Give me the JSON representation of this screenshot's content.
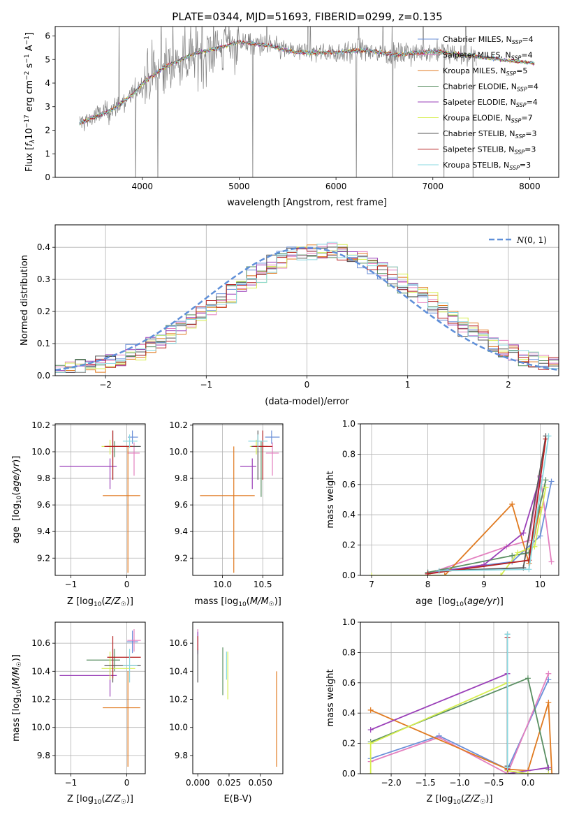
{
  "figure_title": "PLATE=0344, MJD=51693, FIBERID=0299, z=0.135",
  "colors": {
    "Chabrier MILES": "#6a8fd8",
    "Salpeter MILES": "#e37fbf",
    "Kroupa MILES": "#e07a20",
    "Chabrier ELODIE": "#5a8f62",
    "Salpeter ELODIE": "#9a3fb8",
    "Kroupa ELODIE": "#d6ee50",
    "Chabrier STELIB": "#555555",
    "Salpeter STELIB": "#b51f1f",
    "Kroupa STELIB": "#8ad8e0",
    "data": "#808080",
    "normal": "#5f8fd8",
    "grid": "#b0b0b0"
  },
  "chart_data": [
    {
      "panel": "spectrum",
      "type": "line",
      "xlabel": "wavelength [Angstrom, rest frame]",
      "ylabel": "Flux [fλ10⁻¹⁷ erg cm⁻² s⁻¹ A⁻¹]",
      "xlim": [
        3100,
        8300
      ],
      "ylim": [
        0,
        6.4
      ],
      "xticks": [
        4000,
        5000,
        6000,
        7000,
        8000
      ],
      "yticks": [
        0,
        1,
        2,
        3,
        4,
        5,
        6
      ],
      "grid": false,
      "legend": "top-right",
      "legend_entries": [
        "Chabrier MILES, N_SSP=4",
        "Salpeter MILES, N_SSP=4",
        "Kroupa MILES, N_SSP=5",
        "Chabrier ELODIE, N_SSP=4",
        "Salpeter ELODIE, N_SSP=4",
        "Kroupa ELODIE, N_SSP=7",
        "Chabrier STELIB, N_SSP=3",
        "Salpeter STELIB, N_SSP=3",
        "Kroupa STELIB, N_SSP=3"
      ],
      "continuum": {
        "x": [
          3350,
          3500,
          3700,
          3900,
          4000,
          4200,
          4500,
          4800,
          5000,
          5300,
          5600,
          6000,
          6300,
          6600,
          7000,
          7400,
          7800,
          8050
        ],
        "y": [
          2.3,
          2.55,
          2.9,
          3.5,
          4.0,
          4.6,
          5.2,
          5.5,
          5.75,
          5.6,
          5.3,
          5.3,
          5.4,
          5.2,
          5.35,
          5.15,
          4.95,
          4.85
        ]
      },
      "model_x_range": [
        3350,
        8050
      ],
      "data_x_range": [
        3350,
        7450
      ]
    },
    {
      "panel": "residuals",
      "type": "bar",
      "xlabel": "(data-model)/error",
      "ylabel": "Normed distribution",
      "xlim": [
        -2.5,
        2.5
      ],
      "ylim": [
        0,
        0.47
      ],
      "xticks": [
        -2,
        -1,
        0,
        1,
        2
      ],
      "yticks": [
        0.0,
        0.1,
        0.2,
        0.3,
        0.4
      ],
      "grid": true,
      "legend": "top-right",
      "legend_entries": [
        "N(0,1)"
      ],
      "bin_width": 0.1,
      "x_start": -2.5
    },
    {
      "panel": "age_vs_Z",
      "type": "scatter",
      "xlabel": "Z [log10(Z/Z☉)]",
      "ylabel": "age  [log10(age/yr)]",
      "xlim": [
        -1.28,
        0.33
      ],
      "ylim": [
        9.07,
        10.21
      ],
      "xticks": [
        -1,
        0
      ],
      "yticks": [
        9.2,
        9.4,
        9.6,
        9.8,
        10.0,
        10.2
      ],
      "grid": true,
      "points": [
        {
          "model": "Chabrier MILES",
          "x": 0.1,
          "y": 10.11,
          "xerr": [
            0.08,
            0.1
          ],
          "yerr": [
            0.05,
            0.05
          ]
        },
        {
          "model": "Salpeter MILES",
          "x": 0.13,
          "y": 9.99,
          "xerr": [
            0.12,
            0.1
          ],
          "yerr": [
            0.17,
            0.08
          ]
        },
        {
          "model": "Kroupa MILES",
          "x": 0.02,
          "y": 9.67,
          "xerr": [
            0.45,
            0.22
          ],
          "yerr": [
            0.58,
            0.37
          ]
        },
        {
          "model": "Chabrier ELODIE",
          "x": -0.22,
          "y": 10.04,
          "xerr": [
            0.15,
            0.18
          ],
          "yerr": [
            0.08,
            0.04
          ]
        },
        {
          "model": "Salpeter ELODIE",
          "x": -0.3,
          "y": 9.89,
          "xerr": [
            0.9,
            0.12
          ],
          "yerr": [
            0.17,
            0.06
          ]
        },
        {
          "model": "Kroupa ELODIE",
          "x": -0.3,
          "y": 10.04,
          "xerr": [
            0.15,
            0.45
          ],
          "yerr": [
            0.06,
            0.05
          ]
        },
        {
          "model": "Chabrier STELIB",
          "x": -0.25,
          "y": 10.04,
          "xerr": [
            0.1,
            0.5
          ],
          "yerr": [
            0.25,
            0.12
          ]
        },
        {
          "model": "Salpeter STELIB",
          "x": -0.25,
          "y": 10.04,
          "xerr": [
            0.15,
            0.35
          ],
          "yerr": [
            0.25,
            0.12
          ]
        },
        {
          "model": "Kroupa STELIB",
          "x": 0.05,
          "y": 10.08,
          "xerr": [
            0.12,
            0.14
          ],
          "yerr": [
            0.05,
            0.05
          ]
        }
      ]
    },
    {
      "panel": "age_vs_mass",
      "type": "scatter",
      "xlabel": "mass [log10(M/M☉)]",
      "ylabel": "",
      "xlim": [
        9.63,
        10.75
      ],
      "ylim": [
        9.07,
        10.21
      ],
      "xticks": [
        10.0,
        10.5
      ],
      "yticks": [
        9.2,
        9.4,
        9.6,
        9.8,
        10.0,
        10.2
      ],
      "grid": true,
      "points": [
        {
          "model": "Chabrier MILES",
          "x": 10.61,
          "y": 10.11,
          "xerr": [
            0.08,
            0.1
          ],
          "yerr": [
            0.05,
            0.05
          ]
        },
        {
          "model": "Salpeter MILES",
          "x": 10.62,
          "y": 9.99,
          "xerr": [
            0.08,
            0.08
          ],
          "yerr": [
            0.17,
            0.08
          ]
        },
        {
          "model": "Kroupa MILES",
          "x": 10.14,
          "y": 9.67,
          "xerr": [
            0.42,
            0.26
          ],
          "yerr": [
            0.58,
            0.37
          ]
        },
        {
          "model": "Chabrier ELODIE",
          "x": 10.48,
          "y": 10.04,
          "xerr": [
            0.08,
            0.08
          ],
          "yerr": [
            0.38,
            0.04
          ]
        },
        {
          "model": "Salpeter ELODIE",
          "x": 10.37,
          "y": 9.89,
          "xerr": [
            0.15,
            0.05
          ],
          "yerr": [
            0.17,
            0.06
          ]
        },
        {
          "model": "Kroupa ELODIE",
          "x": 10.42,
          "y": 10.04,
          "xerr": [
            0.08,
            0.12
          ],
          "yerr": [
            0.06,
            0.05
          ]
        },
        {
          "model": "Chabrier STELIB",
          "x": 10.44,
          "y": 10.04,
          "xerr": [
            0.08,
            0.08
          ],
          "yerr": [
            0.25,
            0.12
          ]
        },
        {
          "model": "Salpeter STELIB",
          "x": 10.5,
          "y": 10.04,
          "xerr": [
            0.12,
            0.12
          ],
          "yerr": [
            0.25,
            0.12
          ]
        },
        {
          "model": "Kroupa STELIB",
          "x": 10.44,
          "y": 10.08,
          "xerr": [
            0.12,
            0.12
          ],
          "yerr": [
            0.05,
            0.05
          ]
        }
      ]
    },
    {
      "panel": "weight_vs_age",
      "type": "line",
      "xlabel": "age  [log10(age/yr)]",
      "ylabel": "mass weight",
      "xlim": [
        6.8,
        10.33
      ],
      "ylim": [
        0,
        1.0
      ],
      "xticks": [
        7,
        8,
        9,
        10
      ],
      "yticks": [
        0.0,
        0.2,
        0.4,
        0.6,
        0.8,
        1.0
      ],
      "grid": true,
      "series": [
        {
          "model": "Chabrier MILES",
          "x": [
            8.0,
            9.5,
            10.0,
            10.2
          ],
          "y": [
            0.02,
            0.09,
            0.26,
            0.62
          ]
        },
        {
          "model": "Salpeter MILES",
          "x": [
            8.0,
            9.4,
            9.8,
            10.0,
            10.2
          ],
          "y": [
            0.01,
            0.19,
            0.23,
            0.66,
            0.09
          ]
        },
        {
          "model": "Kroupa MILES",
          "x": [
            8.0,
            8.3,
            9.5,
            9.8,
            10.0
          ],
          "y": [
            0.0,
            0.0,
            0.47,
            0.08,
            0.45
          ]
        },
        {
          "model": "Chabrier ELODIE",
          "x": [
            8.0,
            9.5,
            9.8,
            10.1
          ],
          "y": [
            0.02,
            0.13,
            0.15,
            0.63
          ]
        },
        {
          "model": "Salpeter ELODIE",
          "x": [
            8.0,
            9.0,
            9.7,
            10.0
          ],
          "y": [
            0.01,
            0.07,
            0.28,
            0.65
          ]
        },
        {
          "model": "Kroupa ELODIE",
          "x": [
            7.0,
            8.0,
            9.3,
            9.6,
            9.9,
            10.1
          ],
          "y": [
            0.0,
            0.0,
            0.0,
            0.15,
            0.19,
            0.58
          ]
        },
        {
          "model": "Chabrier STELIB",
          "x": [
            8.2,
            9.7,
            10.1
          ],
          "y": [
            0.03,
            0.05,
            0.92
          ]
        },
        {
          "model": "Salpeter STELIB",
          "x": [
            8.0,
            9.8,
            10.1
          ],
          "y": [
            0.01,
            0.1,
            0.9
          ]
        },
        {
          "model": "Kroupa STELIB",
          "x": [
            8.2,
            9.8,
            10.15
          ],
          "y": [
            0.03,
            0.04,
            0.92
          ]
        }
      ]
    },
    {
      "panel": "mass_vs_Z",
      "type": "scatter",
      "xlabel": "Z [log10(Z/Z☉)]",
      "ylabel": "mass [log10(M/M☉)]",
      "xlim": [
        -1.28,
        0.33
      ],
      "ylim": [
        9.67,
        10.75
      ],
      "xticks": [
        -1,
        0
      ],
      "yticks": [
        9.8,
        10.0,
        10.2,
        10.4,
        10.6
      ],
      "grid": true,
      "points": [
        {
          "model": "Chabrier MILES",
          "x": 0.1,
          "y": 10.61,
          "xerr": [
            0.1,
            0.1
          ],
          "yerr": [
            0.08,
            0.08
          ]
        },
        {
          "model": "Salpeter MILES",
          "x": 0.13,
          "y": 10.62,
          "xerr": [
            0.12,
            0.12
          ],
          "yerr": [
            0.08,
            0.08
          ]
        },
        {
          "model": "Kroupa MILES",
          "x": 0.02,
          "y": 10.14,
          "xerr": [
            0.45,
            0.22
          ],
          "yerr": [
            0.42,
            0.26
          ]
        },
        {
          "model": "Chabrier ELODIE",
          "x": -0.22,
          "y": 10.48,
          "xerr": [
            0.5,
            0.1
          ],
          "yerr": [
            0.08,
            0.08
          ]
        },
        {
          "model": "Salpeter ELODIE",
          "x": -0.3,
          "y": 10.37,
          "xerr": [
            0.9,
            0.12
          ],
          "yerr": [
            0.15,
            0.05
          ]
        },
        {
          "model": "Kroupa ELODIE",
          "x": -0.3,
          "y": 10.42,
          "xerr": [
            0.15,
            0.45
          ],
          "yerr": [
            0.08,
            0.12
          ]
        },
        {
          "model": "Chabrier STELIB",
          "x": -0.25,
          "y": 10.44,
          "xerr": [
            0.15,
            0.5
          ],
          "yerr": [
            0.12,
            0.12
          ]
        },
        {
          "model": "Salpeter STELIB",
          "x": -0.25,
          "y": 10.5,
          "xerr": [
            0.1,
            0.5
          ],
          "yerr": [
            0.15,
            0.15
          ]
        },
        {
          "model": "Kroupa STELIB",
          "x": 0.05,
          "y": 10.44,
          "xerr": [
            0.12,
            0.14
          ],
          "yerr": [
            0.12,
            0.12
          ]
        }
      ]
    },
    {
      "panel": "mass_vs_EBV",
      "type": "scatter",
      "xlabel": "E(B-V)",
      "ylabel": "",
      "xlim": [
        -0.004,
        0.068
      ],
      "ylim": [
        9.67,
        10.75
      ],
      "xticks": [
        0.0,
        0.025,
        0.05
      ],
      "xtick_labels": [
        "0.000",
        "0.025",
        "0.050"
      ],
      "yticks": [
        9.8,
        10.0,
        10.2,
        10.4,
        10.6
      ],
      "grid": false,
      "points": [
        {
          "model": "Chabrier MILES",
          "x": 0.0,
          "y": 10.61,
          "yerr": [
            0.08,
            0.08
          ]
        },
        {
          "model": "Salpeter MILES",
          "x": 0.0,
          "y": 10.62,
          "yerr": [
            0.08,
            0.08
          ]
        },
        {
          "model": "Kroupa MILES",
          "x": 0.063,
          "y": 10.14,
          "yerr": [
            0.42,
            0.26
          ]
        },
        {
          "model": "Chabrier ELODIE",
          "x": 0.02,
          "y": 10.4,
          "yerr": [
            0.17,
            0.17
          ]
        },
        {
          "model": "Salpeter ELODIE",
          "x": 0.0,
          "y": 10.6,
          "yerr": [
            0.08,
            0.08
          ]
        },
        {
          "model": "Kroupa ELODIE",
          "x": 0.024,
          "y": 10.37,
          "yerr": [
            0.17,
            0.17
          ]
        },
        {
          "model": "Chabrier STELIB",
          "x": 0.0,
          "y": 10.44,
          "yerr": [
            0.12,
            0.12
          ]
        },
        {
          "model": "Salpeter STELIB",
          "x": 0.0,
          "y": 10.6,
          "yerr": [
            0.05,
            0.05
          ]
        },
        {
          "model": "Kroupa STELIB",
          "x": 0.023,
          "y": 10.44,
          "yerr": [
            0.1,
            0.1
          ]
        }
      ]
    },
    {
      "panel": "weight_vs_Z",
      "type": "line",
      "xlabel": "Z [log10(Z/Z☉)]",
      "ylabel": "mass weight",
      "xlim": [
        -2.45,
        0.45
      ],
      "ylim": [
        0,
        1.0
      ],
      "xticks": [
        -2.0,
        -1.5,
        -1.0,
        -0.5,
        0.0
      ],
      "xtick_labels": [
        "−2.0",
        "−1.5",
        "−1.0",
        "−0.5",
        "0.0"
      ],
      "yticks": [
        0.0,
        0.2,
        0.4,
        0.6,
        0.8,
        1.0
      ],
      "grid": true,
      "series": [
        {
          "model": "Chabrier MILES",
          "x": [
            -2.3,
            -1.3,
            -0.3,
            0.3
          ],
          "y": [
            0.1,
            0.25,
            0.03,
            0.62
          ]
        },
        {
          "model": "Salpeter MILES",
          "x": [
            -2.3,
            -1.3,
            -0.3,
            0.3
          ],
          "y": [
            0.08,
            0.24,
            0.0,
            0.66
          ]
        },
        {
          "model": "Kroupa MILES",
          "x": [
            -2.3,
            -0.3,
            0.0,
            0.3,
            0.35
          ],
          "y": [
            0.42,
            0.03,
            0.02,
            0.47,
            0.0
          ]
        },
        {
          "model": "Chabrier ELODIE",
          "x": [
            -2.3,
            0.0,
            0.3
          ],
          "y": [
            0.21,
            0.63,
            0.03
          ]
        },
        {
          "model": "Salpeter ELODIE",
          "x": [
            -2.3,
            -0.3,
            -0.3,
            0.3
          ],
          "y": [
            0.29,
            0.66,
            0.0,
            0.04
          ]
        },
        {
          "model": "Kroupa ELODIE",
          "x": [
            -2.3,
            -2.3,
            -0.3,
            -0.3,
            0.0,
            0.3
          ],
          "y": [
            0.0,
            0.2,
            0.6,
            0.02,
            0.0,
            0.0
          ]
        },
        {
          "model": "Chabrier STELIB",
          "x": [
            -0.3,
            -0.3
          ],
          "y": [
            0.05,
            0.92
          ]
        },
        {
          "model": "Salpeter STELIB",
          "x": [
            -0.3,
            -0.3
          ],
          "y": [
            0.03,
            0.9
          ]
        },
        {
          "model": "Kroupa STELIB",
          "x": [
            -0.3,
            -0.3
          ],
          "y": [
            0.04,
            0.92
          ]
        }
      ]
    }
  ]
}
